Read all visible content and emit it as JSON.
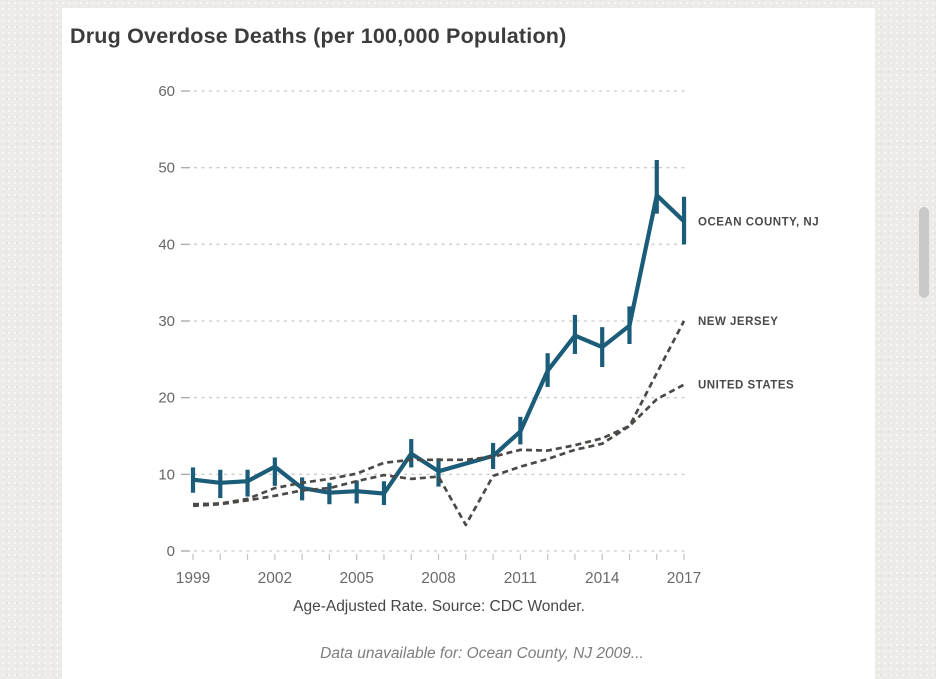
{
  "page": {
    "title": "Drug Overdose Deaths (per 100,000 Population)",
    "caption": "Age-Adjusted Rate. Source: CDC Wonder.",
    "footnote": "Data unavailable for: Ocean County, NJ 2009..."
  },
  "colors": {
    "accent_blue": "#1b5c79",
    "dashed_gray": "#4b4945",
    "grid_gray": "#cbcbcb",
    "card_bg": "#ffffff",
    "page_bg": "#ecebe8"
  },
  "chart_data": {
    "type": "line",
    "title": "Drug Overdose Deaths (per 100,000 Population)",
    "xlabel": "Age-Adjusted Rate. Source: CDC Wonder.",
    "ylabel": "",
    "grid": true,
    "legend_position": "right-of-line-ends",
    "annotation": "Data unavailable for: Ocean County, NJ 2009...",
    "x": [
      1999,
      2000,
      2001,
      2002,
      2003,
      2004,
      2005,
      2006,
      2007,
      2008,
      2009,
      2010,
      2011,
      2012,
      2013,
      2014,
      2015,
      2016,
      2017
    ],
    "x_tick_labels": [
      1999,
      2002,
      2005,
      2008,
      2011,
      2014,
      2017
    ],
    "y_ticks": [
      0,
      10,
      20,
      30,
      40,
      50,
      60
    ],
    "ylim": [
      0,
      60
    ],
    "series": [
      {
        "name": "OCEAN COUNTY, NJ",
        "style": "solid_with_error_bars",
        "color": "#1b5c79",
        "values": [
          9.3,
          8.9,
          9.1,
          11.0,
          8.2,
          7.6,
          7.8,
          7.5,
          12.7,
          10.4,
          null,
          12.4,
          15.6,
          23.5,
          28.1,
          26.6,
          29.4,
          46.4,
          43.0
        ],
        "ci_low": [
          7.6,
          6.9,
          7.1,
          8.5,
          6.6,
          6.1,
          6.2,
          6.0,
          10.9,
          8.4,
          null,
          10.7,
          13.9,
          21.4,
          25.7,
          24.0,
          27.0,
          44.0,
          40.0
        ],
        "ci_high": [
          10.9,
          10.6,
          10.6,
          12.2,
          9.6,
          8.9,
          9.2,
          9.1,
          14.6,
          12.1,
          null,
          14.1,
          17.5,
          25.8,
          30.8,
          29.2,
          31.9,
          51.0,
          46.2
        ]
      },
      {
        "name": "NEW JERSEY",
        "style": "dashed",
        "color": "#4b4945",
        "values": [
          5.9,
          6.1,
          6.6,
          7.2,
          7.9,
          8.2,
          9.1,
          9.9,
          9.4,
          9.7,
          3.4,
          9.8,
          11.0,
          12.0,
          13.2,
          14.0,
          16.3,
          23.2,
          30.0
        ]
      },
      {
        "name": "UNITED STATES",
        "style": "dashed",
        "color": "#4b4945",
        "values": [
          6.1,
          6.2,
          6.8,
          8.2,
          8.9,
          9.4,
          10.1,
          11.5,
          11.9,
          11.9,
          11.9,
          12.3,
          13.2,
          13.1,
          13.8,
          14.7,
          16.3,
          19.8,
          21.7
        ]
      }
    ]
  },
  "scrollbar": {
    "visible": "true"
  }
}
